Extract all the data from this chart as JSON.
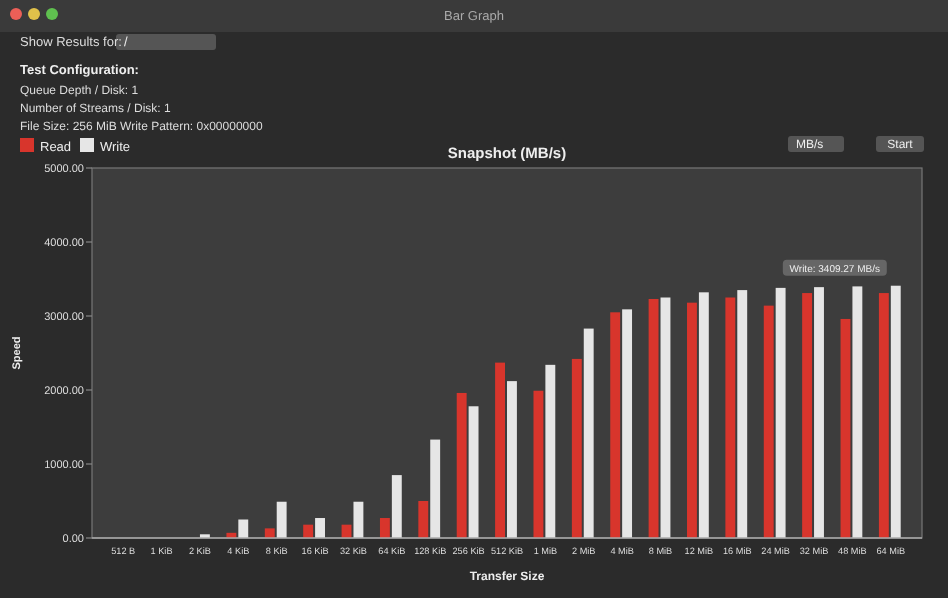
{
  "chart_data": {
    "type": "bar",
    "title": "Snapshot (MB/s)",
    "xlabel": "Transfer Size",
    "ylabel": "Speed",
    "categories": [
      "512 B",
      "1 KiB",
      "2 KiB",
      "4 KiB",
      "8 KiB",
      "16 KiB",
      "32 KiB",
      "64 KiB",
      "128 KiB",
      "256 KiB",
      "512 KiB",
      "1 MiB",
      "2 MiB",
      "4 MiB",
      "8 MiB",
      "12 MiB",
      "16 MiB",
      "24 MiB",
      "32 MiB",
      "48 MiB",
      "64 MiB"
    ],
    "series": [
      {
        "name": "Read",
        "color": "#d8352c",
        "values": [
          null,
          null,
          null,
          70,
          130,
          180,
          180,
          270,
          500,
          1960,
          2370,
          1990,
          2420,
          3050,
          3230,
          3180,
          3250,
          3140,
          3310,
          2960,
          3310
        ]
      },
      {
        "name": "Write",
        "color": "#e6e6e6",
        "values": [
          null,
          null,
          50,
          250,
          490,
          270,
          490,
          850,
          1330,
          1780,
          2120,
          2340,
          2830,
          3090,
          3250,
          3320,
          3350,
          3380,
          3390,
          3400,
          3409.27
        ]
      }
    ],
    "ylim": [
      0,
      5000
    ],
    "yticks": [
      {
        "value": 0,
        "label": "0.00"
      },
      {
        "value": 1000,
        "label": "1000.00"
      },
      {
        "value": 2000,
        "label": "2000.00"
      },
      {
        "value": 3000,
        "label": "3000.00"
      },
      {
        "value": 4000,
        "label": "4000.00"
      },
      {
        "value": 5000,
        "label": "5000.00"
      }
    ],
    "legend": "top left",
    "annotations": [
      "Bar Graph",
      "Show Results for:",
      "/",
      "Test Configuration:",
      "Queue Depth / Disk: 1",
      "Number of Streams / Disk: 1",
      "File Size: 256 MiB  Write Pattern: 0x00000000",
      "MB/s",
      "Start",
      {
        "text": "Write: 3409.27 MB/s",
        "x": "64 MiB",
        "y": 3409.27
      }
    ]
  }
}
